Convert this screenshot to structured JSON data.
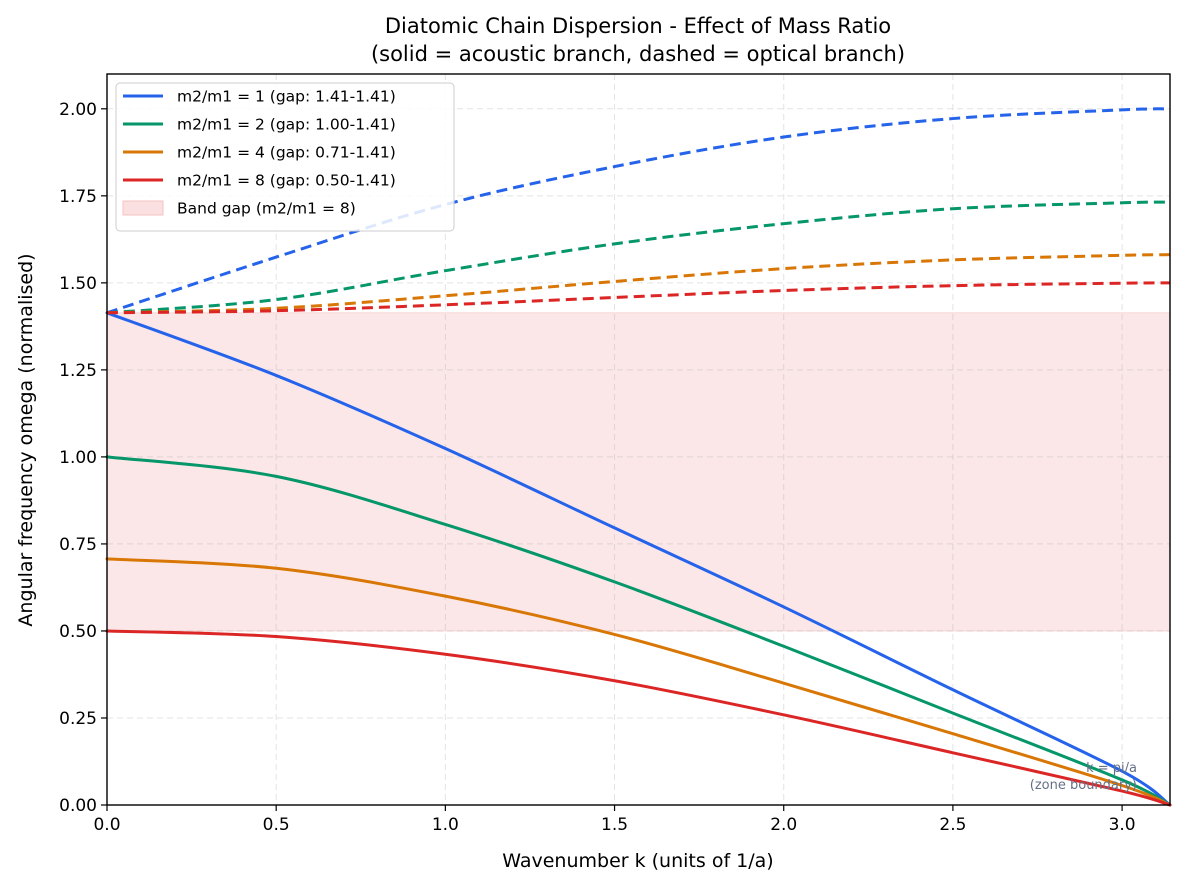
{
  "chart_data": {
    "type": "line",
    "title": "Diatomic Chain Dispersion - Effect of Mass Ratio",
    "subtitle": "(solid = acoustic branch, dashed = optical branch)",
    "xlabel": "Wavenumber k  (units of 1/a)",
    "ylabel": "Angular frequency omega  (normalised)",
    "xlim": [
      0,
      3.1416
    ],
    "ylim": [
      0,
      2.1
    ],
    "xticks": [
      0.0,
      0.5,
      1.0,
      1.5,
      2.0,
      2.5,
      3.0
    ],
    "xtick_labels": [
      "0.0",
      "0.5",
      "1.0",
      "1.5",
      "2.0",
      "2.5",
      "3.0"
    ],
    "yticks": [
      0.0,
      0.25,
      0.5,
      0.75,
      1.0,
      1.25,
      1.5,
      1.75,
      2.0
    ],
    "ytick_labels": [
      "0.00",
      "0.25",
      "0.50",
      "0.75",
      "1.00",
      "1.25",
      "1.50",
      "1.75",
      "2.00"
    ],
    "grid": true,
    "legend_position": "top-left",
    "series": [
      {
        "name": "m2/m1 = 1  (gap: 1.41-1.41)",
        "color": "#2563eb",
        "acoustic": {
          "x": [
            0,
            0.5,
            1.0,
            1.5,
            2.0,
            2.5,
            3.0,
            3.1416
          ],
          "y": [
            1.414,
            1.234,
            1.024,
            0.796,
            0.569,
            0.331,
            0.097,
            0.0
          ]
        },
        "optical": {
          "x": [
            0,
            0.5,
            1.0,
            1.5,
            2.0,
            2.5,
            3.0,
            3.1416
          ],
          "y": [
            1.414,
            1.574,
            1.725,
            1.834,
            1.919,
            1.972,
            1.997,
            2.0
          ]
        }
      },
      {
        "name": "m2/m1 = 2  (gap: 1.00-1.41)",
        "color": "#059669",
        "acoustic": {
          "x": [
            0,
            0.5,
            1.0,
            1.5,
            2.0,
            2.5,
            3.0,
            3.1416
          ],
          "y": [
            1.0,
            0.944,
            0.806,
            0.641,
            0.456,
            0.264,
            0.072,
            0.0
          ]
        },
        "optical": {
          "x": [
            0,
            0.5,
            1.0,
            1.5,
            2.0,
            2.5,
            3.0,
            3.1416
          ],
          "y": [
            1.414,
            1.452,
            1.535,
            1.612,
            1.67,
            1.713,
            1.73,
            1.732
          ]
        }
      },
      {
        "name": "m2/m1 = 4  (gap: 0.71-1.41)",
        "color": "#d97706",
        "acoustic": {
          "x": [
            0,
            0.5,
            1.0,
            1.5,
            2.0,
            2.5,
            3.0,
            3.1416
          ],
          "y": [
            0.707,
            0.68,
            0.6,
            0.49,
            0.35,
            0.205,
            0.056,
            0.0
          ]
        },
        "optical": {
          "x": [
            0,
            0.5,
            1.0,
            1.5,
            2.0,
            2.5,
            3.0,
            3.1416
          ],
          "y": [
            1.414,
            1.427,
            1.463,
            1.504,
            1.541,
            1.566,
            1.579,
            1.581
          ]
        }
      },
      {
        "name": "m2/m1 = 8  (gap: 0.50-1.41)",
        "color": "#dc2626",
        "acoustic": {
          "x": [
            0,
            0.5,
            1.0,
            1.5,
            2.0,
            2.5,
            3.0,
            3.1416
          ],
          "y": [
            0.5,
            0.484,
            0.433,
            0.357,
            0.259,
            0.15,
            0.04,
            0.0
          ]
        },
        "optical": {
          "x": [
            0,
            0.5,
            1.0,
            1.5,
            2.0,
            2.5,
            3.0,
            3.1416
          ],
          "y": [
            1.414,
            1.42,
            1.437,
            1.458,
            1.478,
            1.492,
            1.499,
            1.5
          ]
        }
      }
    ],
    "band": {
      "name": "Band gap (m2/m1 = 8)",
      "ymin": 0.5,
      "ymax": 1.414,
      "color": "#f5c2c2"
    },
    "annotation": {
      "line1": "k = pi/a",
      "line2": "(zone boundary)",
      "x": 3.1416,
      "y": 0.03
    }
  }
}
